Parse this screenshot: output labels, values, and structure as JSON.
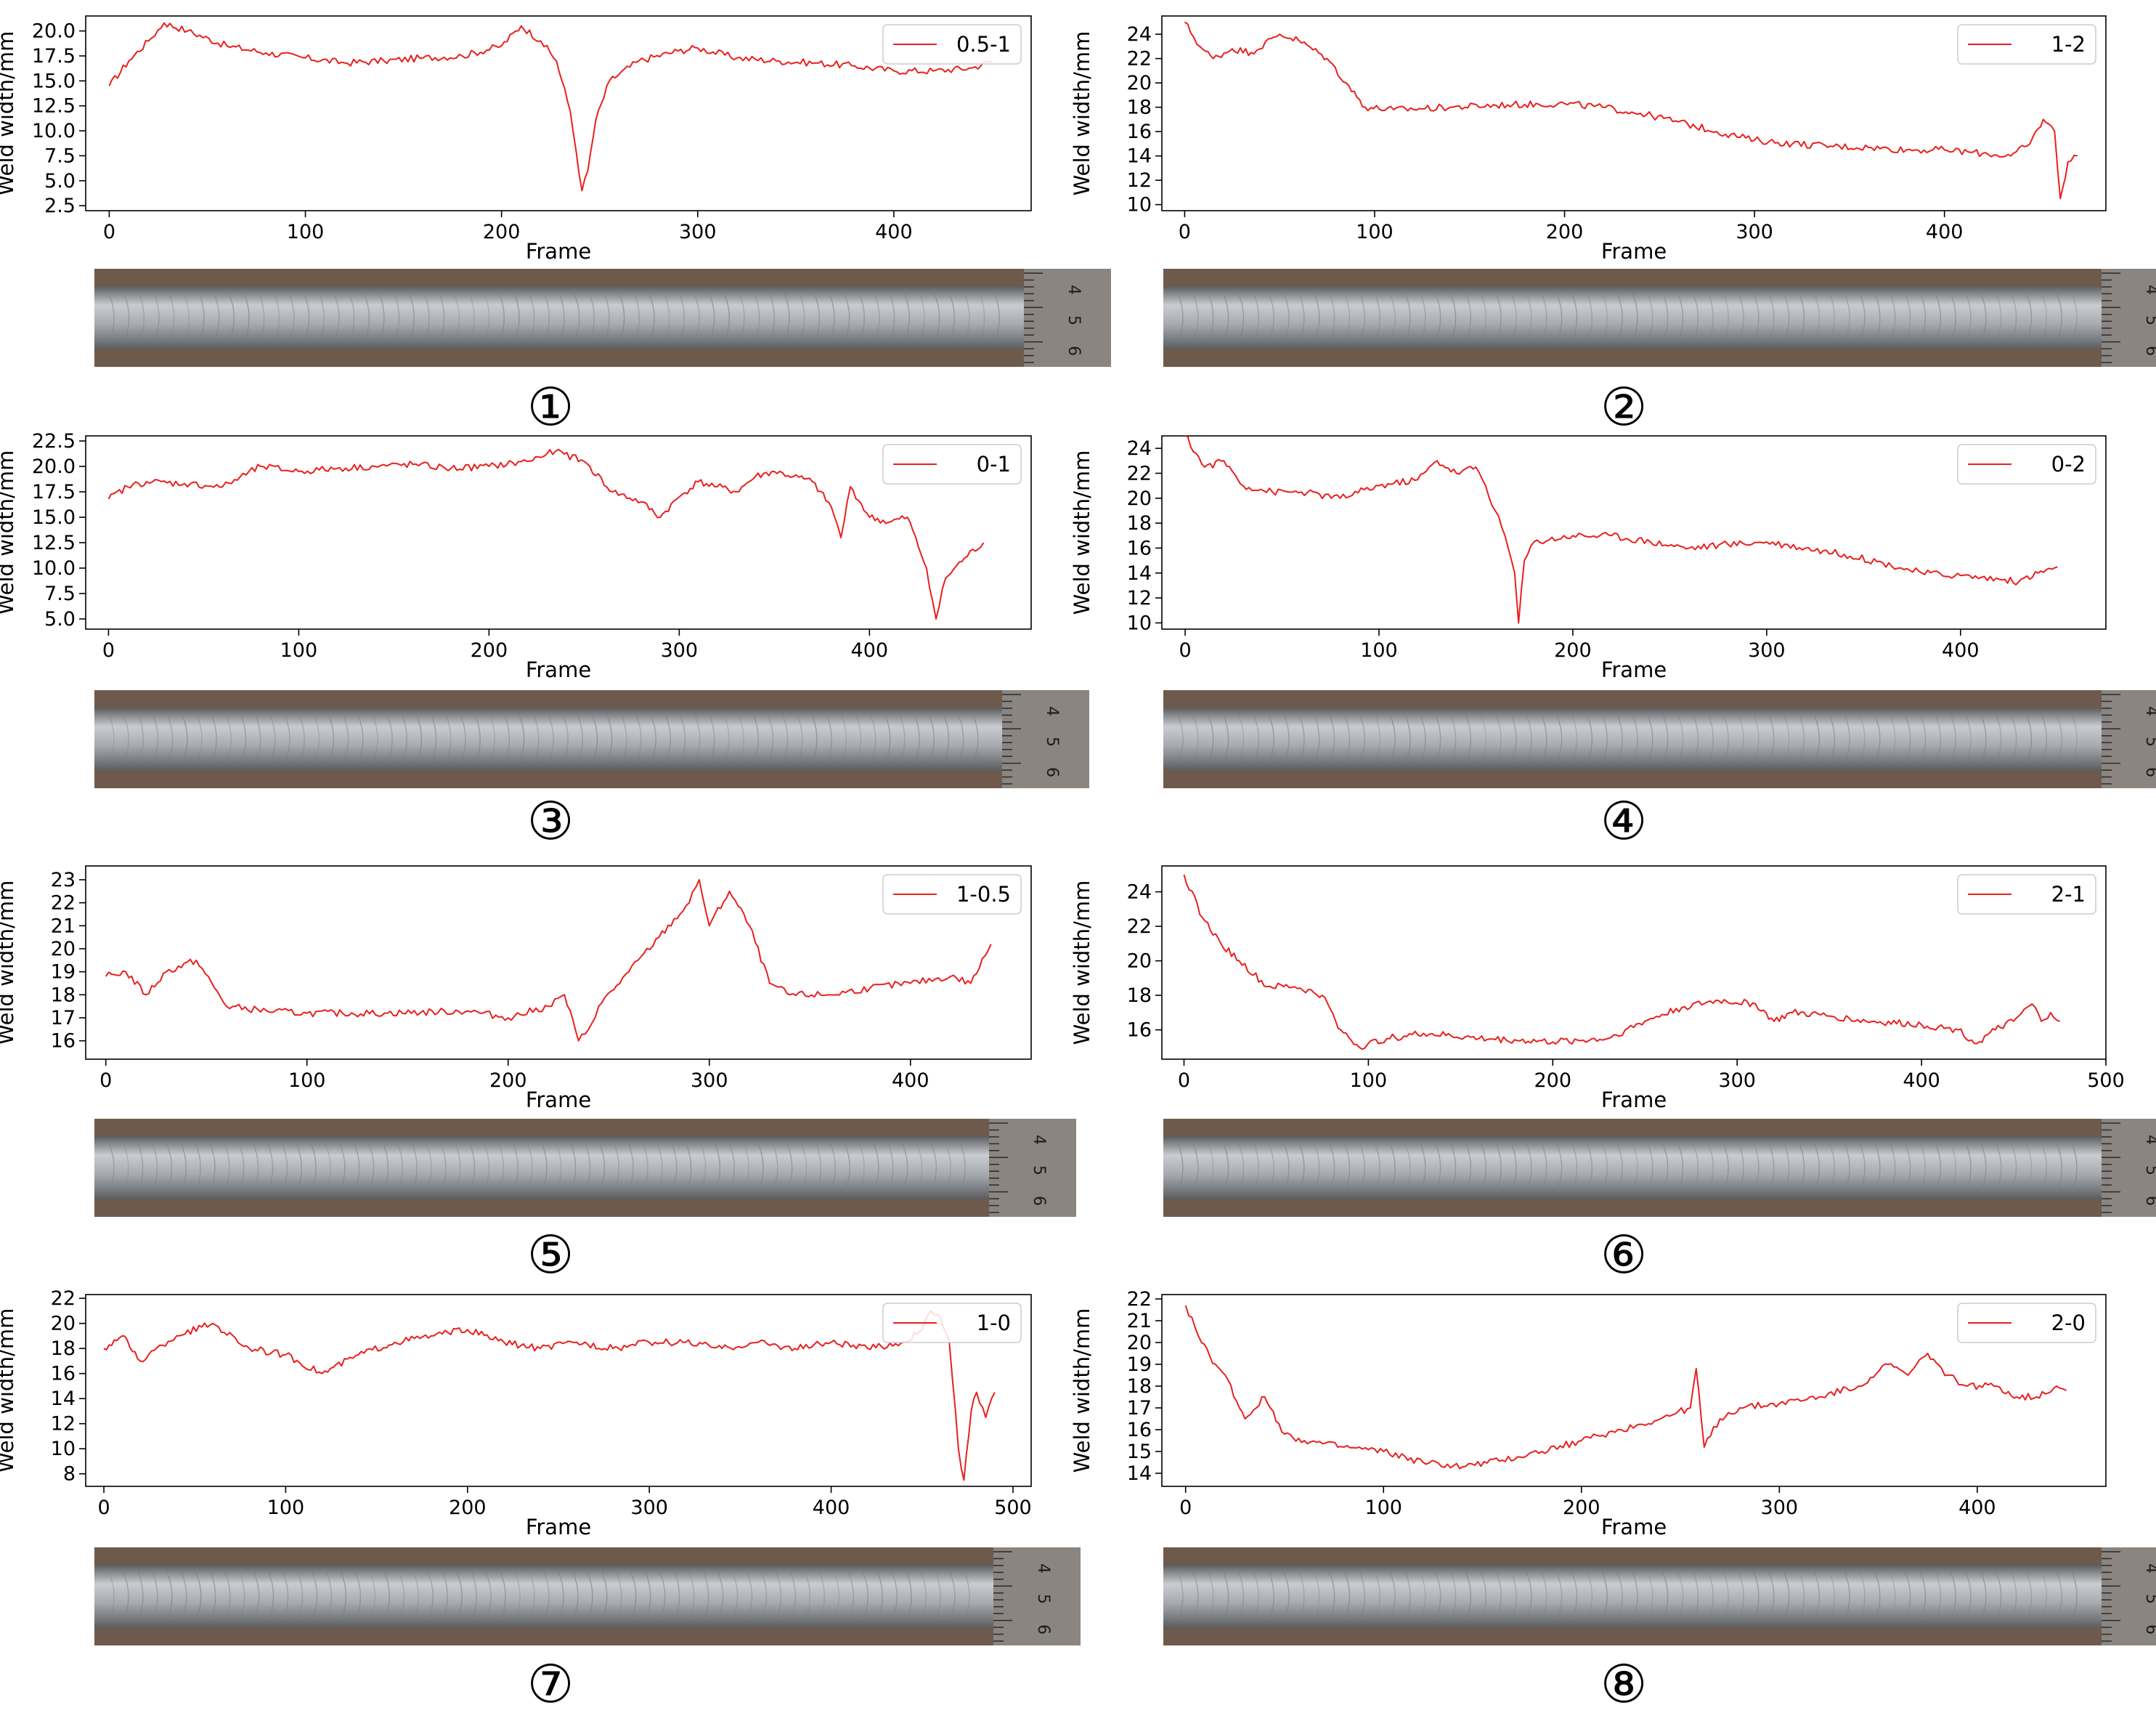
{
  "figure": {
    "panels": [
      {
        "id": "1",
        "label": "①",
        "legend": "0.5-1"
      },
      {
        "id": "2",
        "label": "②",
        "legend": "1-2"
      },
      {
        "id": "3",
        "label": "③",
        "legend": "0-1"
      },
      {
        "id": "4",
        "label": "④",
        "legend": "0-2"
      },
      {
        "id": "5",
        "label": "⑤",
        "legend": "1-0.5"
      },
      {
        "id": "6",
        "label": "⑥",
        "legend": "2-1"
      },
      {
        "id": "7",
        "label": "⑦",
        "legend": "1-0"
      },
      {
        "id": "8",
        "label": "⑧",
        "legend": "2-0"
      }
    ],
    "colors": {
      "series_line": "#e8201e",
      "photo_metal_light": "#c9ccd0",
      "photo_metal_dark": "#5b5d60",
      "photo_plate": "#6e5a4c",
      "ruler": "#8a8580"
    },
    "ruler_marks": [
      "4",
      "5",
      "6"
    ]
  },
  "chart_data": [
    {
      "type": "line",
      "xlabel": "Frame",
      "ylabel": "Weld width/mm",
      "xlim": [
        -12,
        470
      ],
      "ylim": [
        2.0,
        21.5
      ],
      "xticks": [
        "0",
        "100",
        "200",
        "300",
        "400"
      ],
      "yticks": [
        "2.5",
        "5.0",
        "7.5",
        "10.0",
        "12.5",
        "15.0",
        "17.5",
        "20.0"
      ],
      "legend_position": "top-right",
      "series": [
        {
          "name": "0.5-1",
          "x": [
            0,
            10,
            20,
            28,
            40,
            60,
            80,
            100,
            120,
            140,
            160,
            180,
            200,
            210,
            220,
            228,
            235,
            238,
            241,
            244,
            248,
            255,
            270,
            290,
            300,
            320,
            340,
            360,
            380,
            400,
            420,
            440,
            450
          ],
          "y": [
            14.5,
            17.0,
            19.0,
            20.8,
            20.0,
            18.5,
            17.8,
            17.3,
            16.8,
            17.0,
            17.3,
            17.5,
            18.5,
            20.5,
            19.0,
            17.0,
            12.0,
            8.0,
            4.0,
            6.0,
            11.0,
            15.0,
            17.0,
            18.0,
            18.3,
            17.3,
            17.0,
            16.8,
            16.5,
            16.0,
            16.0,
            16.3,
            17.0
          ]
        }
      ]
    },
    {
      "type": "line",
      "xlabel": "Frame",
      "ylabel": "Weld width/mm",
      "xlim": [
        -12,
        485
      ],
      "ylim": [
        9.5,
        25.5
      ],
      "xticks": [
        "0",
        "100",
        "200",
        "300",
        "400"
      ],
      "yticks": [
        "10",
        "12",
        "14",
        "16",
        "18",
        "20",
        "22",
        "24"
      ],
      "legend_position": "top-right",
      "series": [
        {
          "name": "1-2",
          "x": [
            0,
            8,
            15,
            25,
            35,
            50,
            60,
            75,
            85,
            95,
            110,
            140,
            170,
            200,
            220,
            240,
            260,
            280,
            300,
            320,
            340,
            360,
            380,
            400,
            420,
            435,
            445,
            452,
            458,
            461,
            465,
            470
          ],
          "y": [
            25.0,
            23.0,
            22.0,
            22.8,
            22.5,
            24.0,
            23.5,
            22.0,
            20.0,
            18.0,
            17.8,
            18.0,
            18.2,
            18.3,
            18.0,
            17.5,
            16.8,
            16.0,
            15.3,
            15.0,
            14.8,
            14.7,
            14.5,
            14.5,
            14.2,
            14.0,
            15.0,
            17.0,
            16.0,
            10.5,
            13.5,
            14.0
          ]
        }
      ]
    },
    {
      "type": "line",
      "xlabel": "Frame",
      "ylabel": "Weld width/mm",
      "xlim": [
        -12,
        485
      ],
      "ylim": [
        4.0,
        23.0
      ],
      "xticks": [
        "0",
        "100",
        "200",
        "300",
        "400"
      ],
      "yticks": [
        "5.0",
        "7.5",
        "10.0",
        "12.5",
        "15.0",
        "17.5",
        "20.0",
        "22.5"
      ],
      "legend_position": "top-right",
      "series": [
        {
          "name": "0-1",
          "x": [
            0,
            10,
            20,
            40,
            60,
            80,
            100,
            120,
            140,
            160,
            180,
            200,
            220,
            235,
            250,
            265,
            280,
            290,
            300,
            310,
            320,
            330,
            340,
            350,
            360,
            370,
            380,
            385,
            390,
            400,
            410,
            420,
            430,
            435,
            440,
            450,
            460
          ],
          "y": [
            16.8,
            18.0,
            18.5,
            18.3,
            18.0,
            20.0,
            19.5,
            19.8,
            20.0,
            20.2,
            19.8,
            20.0,
            20.5,
            21.5,
            20.5,
            17.5,
            16.5,
            15.0,
            17.0,
            18.5,
            18.0,
            17.5,
            19.0,
            19.5,
            19.0,
            18.5,
            16.0,
            13.0,
            18.0,
            15.0,
            14.5,
            15.0,
            10.0,
            5.0,
            9.0,
            11.0,
            12.5
          ]
        }
      ]
    },
    {
      "type": "line",
      "xlabel": "Frame",
      "ylabel": "Weld width/mm",
      "xlim": [
        -12,
        475
      ],
      "ylim": [
        9.5,
        25.0
      ],
      "xticks": [
        "0",
        "100",
        "200",
        "300",
        "400"
      ],
      "yticks": [
        "10",
        "12",
        "14",
        "16",
        "18",
        "20",
        "22",
        "24"
      ],
      "legend_position": "top-right",
      "series": [
        {
          "name": "0-2",
          "x": [
            0,
            10,
            20,
            30,
            45,
            60,
            80,
            100,
            120,
            130,
            140,
            150,
            155,
            160,
            165,
            170,
            172,
            175,
            180,
            200,
            220,
            240,
            260,
            280,
            300,
            320,
            340,
            360,
            380,
            400,
            420,
            430,
            440,
            450
          ],
          "y": [
            25.0,
            22.5,
            23.0,
            21.0,
            20.5,
            20.5,
            20.0,
            21.0,
            21.5,
            23.0,
            22.0,
            22.5,
            21.0,
            19.0,
            17.0,
            14.0,
            10.0,
            15.0,
            16.5,
            17.0,
            17.0,
            16.5,
            16.0,
            16.3,
            16.5,
            16.0,
            15.5,
            14.8,
            14.0,
            13.8,
            13.5,
            13.3,
            14.0,
            14.5
          ]
        }
      ]
    },
    {
      "type": "line",
      "xlabel": "Frame",
      "ylabel": "Weld width/mm",
      "xlim": [
        -10,
        460
      ],
      "ylim": [
        15.2,
        23.6
      ],
      "xticks": [
        "0",
        "100",
        "200",
        "300",
        "400"
      ],
      "yticks": [
        "16",
        "17",
        "18",
        "19",
        "20",
        "21",
        "22",
        "23"
      ],
      "legend_position": "top-right",
      "series": [
        {
          "name": "1-0.5",
          "x": [
            0,
            10,
            20,
            30,
            45,
            60,
            80,
            100,
            140,
            180,
            200,
            220,
            228,
            235,
            240,
            245,
            260,
            275,
            290,
            295,
            300,
            310,
            320,
            330,
            340,
            360,
            380,
            400,
            420,
            430,
            440
          ],
          "y": [
            18.8,
            19.0,
            18.0,
            19.0,
            19.5,
            17.5,
            17.3,
            17.2,
            17.2,
            17.3,
            17.0,
            17.5,
            18.0,
            16.0,
            16.5,
            17.5,
            19.0,
            20.5,
            22.0,
            23.0,
            21.0,
            22.5,
            21.0,
            18.5,
            18.0,
            18.0,
            18.3,
            18.5,
            18.8,
            18.5,
            20.2
          ]
        }
      ]
    },
    {
      "type": "line",
      "xlabel": "Frame",
      "ylabel": "Weld width/mm",
      "xlim": [
        -12,
        500
      ],
      "ylim": [
        14.3,
        25.5
      ],
      "xticks": [
        "0",
        "100",
        "200",
        "300",
        "400",
        "500"
      ],
      "yticks": [
        "16",
        "18",
        "20",
        "22",
        "24"
      ],
      "legend_position": "top-right",
      "series": [
        {
          "name": "2-1",
          "x": [
            0,
            10,
            20,
            30,
            45,
            60,
            75,
            85,
            95,
            110,
            130,
            160,
            200,
            230,
            250,
            270,
            290,
            310,
            320,
            330,
            350,
            370,
            400,
            420,
            430,
            440,
            450,
            460,
            465,
            470,
            475
          ],
          "y": [
            25.0,
            22.5,
            21.0,
            20.0,
            18.5,
            18.5,
            18.0,
            16.0,
            15.0,
            15.5,
            15.8,
            15.5,
            15.3,
            15.5,
            16.5,
            17.3,
            17.7,
            17.5,
            16.5,
            17.0,
            16.8,
            16.5,
            16.3,
            16.0,
            15.2,
            16.0,
            16.5,
            17.5,
            16.5,
            17.0,
            16.5
          ]
        }
      ]
    },
    {
      "type": "line",
      "xlabel": "Frame",
      "ylabel": "Weld width/mm",
      "xlim": [
        -10,
        510
      ],
      "ylim": [
        7.0,
        22.3
      ],
      "xticks": [
        "0",
        "100",
        "200",
        "300",
        "400",
        "500"
      ],
      "yticks": [
        "8",
        "10",
        "12",
        "14",
        "16",
        "18",
        "20",
        "22"
      ],
      "legend_position": "top-right",
      "series": [
        {
          "name": "1-0",
          "x": [
            0,
            10,
            20,
            40,
            60,
            80,
            100,
            120,
            140,
            160,
            180,
            200,
            220,
            240,
            260,
            280,
            300,
            320,
            340,
            360,
            380,
            400,
            420,
            440,
            450,
            455,
            460,
            465,
            470,
            473,
            477,
            480,
            485,
            490
          ],
          "y": [
            18.0,
            19.0,
            17.0,
            19.0,
            20.0,
            18.0,
            17.5,
            16.0,
            17.5,
            18.5,
            19.0,
            19.5,
            18.5,
            18.0,
            18.5,
            18.0,
            18.5,
            18.5,
            18.0,
            18.5,
            18.0,
            18.5,
            18.0,
            18.5,
            19.5,
            21.0,
            20.5,
            18.5,
            10.0,
            7.5,
            13.0,
            14.5,
            12.5,
            14.5
          ]
        }
      ]
    },
    {
      "type": "line",
      "xlabel": "Frame",
      "ylabel": "Weld width/mm",
      "xlim": [
        -12,
        465
      ],
      "ylim": [
        13.4,
        22.2
      ],
      "xticks": [
        "0",
        "100",
        "200",
        "300",
        "400"
      ],
      "yticks": [
        "14",
        "15",
        "16",
        "17",
        "18",
        "19",
        "20",
        "21",
        "22"
      ],
      "legend_position": "top-right",
      "series": [
        {
          "name": "2-0",
          "x": [
            0,
            8,
            15,
            20,
            30,
            40,
            50,
            60,
            80,
            100,
            120,
            140,
            160,
            180,
            200,
            220,
            240,
            255,
            258,
            262,
            270,
            280,
            300,
            320,
            340,
            355,
            365,
            375,
            385,
            395,
            410,
            420,
            430,
            440,
            445
          ],
          "y": [
            21.7,
            20.0,
            19.0,
            18.5,
            16.5,
            17.5,
            15.8,
            15.5,
            15.2,
            15.0,
            14.5,
            14.3,
            14.6,
            15.0,
            15.5,
            16.0,
            16.5,
            17.0,
            18.8,
            15.2,
            16.5,
            17.0,
            17.2,
            17.5,
            18.0,
            19.0,
            18.5,
            19.5,
            18.5,
            18.0,
            18.0,
            17.5,
            17.5,
            18.0,
            17.8
          ]
        }
      ]
    }
  ]
}
